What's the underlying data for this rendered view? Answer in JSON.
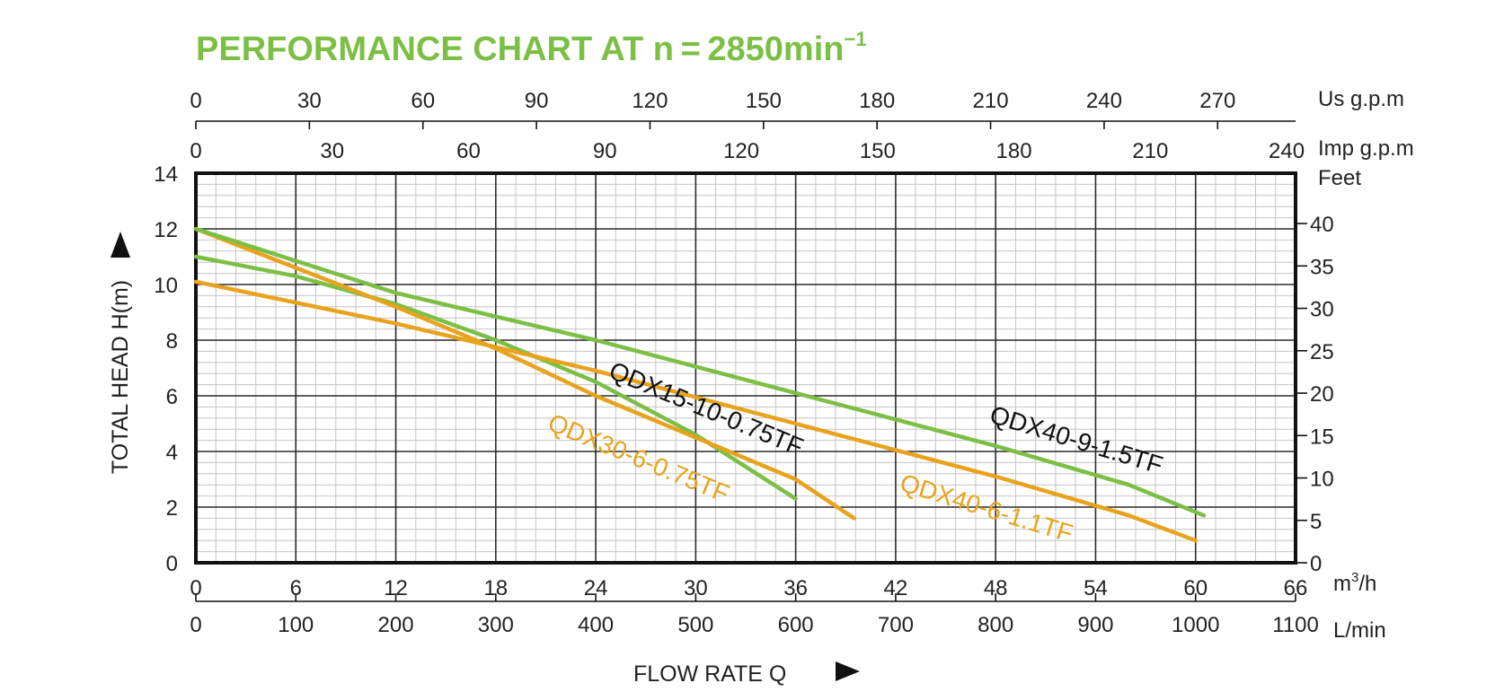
{
  "title": {
    "main": "PERFORMANCE CHART AT n = 2850min",
    "sup": "−1"
  },
  "colors": {
    "title": "#7cbf45",
    "green": "#7cbf45",
    "orange": "#e8a31e",
    "grid": "#2a2a2a",
    "minor": "#c4c4c4",
    "text": "#222222"
  },
  "icons": {
    "y_arrow": "triangle-up-icon",
    "x_arrow": "triangle-right-icon"
  },
  "axes": {
    "y_left_label": "TOTAL HEAD H(m)",
    "x_bottom_label": "FLOW RATE Q",
    "units": {
      "usgpm": "Us g.p.m",
      "impgpm": "Imp g.p.m",
      "feet": "Feet",
      "m3h_base": "m",
      "m3h_sup": "3",
      "m3h_tail": "/h",
      "lmin": "L/min"
    },
    "ticks": {
      "usgpm": [
        "0",
        "30",
        "60",
        "90",
        "120",
        "150",
        "180",
        "210",
        "240",
        "270"
      ],
      "impgpm": [
        "0",
        "30",
        "60",
        "90",
        "120",
        "150",
        "180",
        "210",
        "240"
      ],
      "head_m": [
        "0",
        "2",
        "4",
        "6",
        "8",
        "10",
        "12",
        "14"
      ],
      "feet": [
        "0",
        "5",
        "10",
        "15",
        "20",
        "25",
        "30",
        "35",
        "40"
      ],
      "m3h": [
        "0",
        "6",
        "12",
        "18",
        "24",
        "30",
        "36",
        "42",
        "48",
        "54",
        "60",
        "66"
      ],
      "lmin": [
        "0",
        "100",
        "200",
        "300",
        "400",
        "500",
        "600",
        "700",
        "800",
        "900",
        "1000",
        "1100"
      ]
    }
  },
  "chart_data": {
    "type": "line",
    "title": "PERFORMANCE CHART AT n = 2850min⁻¹",
    "xlabel": "FLOW RATE Q",
    "x_unit": "m³/h",
    "ylabel": "TOTAL HEAD H(m)",
    "xlim": [
      0,
      66
    ],
    "ylim": [
      0,
      14
    ],
    "grid": true,
    "secondary_axes": {
      "top": [
        "Us g.p.m",
        "Imp g.p.m"
      ],
      "bottom": "L/min",
      "right": "Feet"
    },
    "series": [
      {
        "name": "QDX15-10-0.75TF",
        "color": "#7cbf45",
        "points": [
          [
            0,
            11.0
          ],
          [
            6,
            10.3
          ],
          [
            12,
            9.3
          ],
          [
            18,
            8.0
          ],
          [
            24,
            6.5
          ],
          [
            30,
            4.6
          ],
          [
            36,
            2.3
          ]
        ]
      },
      {
        "name": "QDX30-6-0.75TF",
        "color": "#e8a31e",
        "points": [
          [
            0,
            12.0
          ],
          [
            6,
            10.6
          ],
          [
            12,
            9.2
          ],
          [
            18,
            7.7
          ],
          [
            24,
            6.0
          ],
          [
            30,
            4.5
          ],
          [
            36,
            3.0
          ],
          [
            39.5,
            1.6
          ]
        ]
      },
      {
        "name": "QDX40-9-1.5TF",
        "color": "#7cbf45",
        "points": [
          [
            0,
            12.0
          ],
          [
            12,
            9.7
          ],
          [
            24,
            8.0
          ],
          [
            36,
            6.1
          ],
          [
            48,
            4.2
          ],
          [
            56,
            2.8
          ],
          [
            60.5,
            1.7
          ]
        ]
      },
      {
        "name": "QDX40-6-1.1TF",
        "color": "#e8a31e",
        "points": [
          [
            0,
            10.1
          ],
          [
            12,
            8.6
          ],
          [
            24,
            6.9
          ],
          [
            36,
            5.0
          ],
          [
            48,
            3.1
          ],
          [
            56,
            1.7
          ],
          [
            60,
            0.8
          ]
        ]
      }
    ]
  }
}
